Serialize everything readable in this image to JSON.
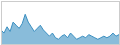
{
  "chart_data": {
    "type": "area",
    "values": [
      18,
      14,
      22,
      16,
      28,
      24,
      20,
      26,
      38,
      28,
      22,
      16,
      20,
      24,
      18,
      14,
      10,
      14,
      8,
      6,
      10,
      12,
      8,
      14,
      10,
      6,
      8,
      10,
      8,
      12,
      10,
      8,
      6,
      8,
      10,
      8,
      10,
      14,
      10,
      12
    ],
    "color": "#3a8fc1",
    "xlim": [
      0,
      39
    ],
    "ylim": [
      0,
      55
    ],
    "tick_labels": false
  }
}
